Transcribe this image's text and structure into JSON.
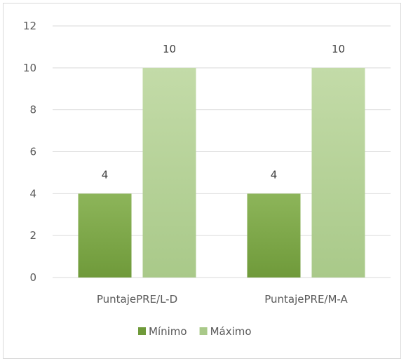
{
  "chart_data": {
    "type": "bar",
    "categories": [
      "PuntajePRE/L-D",
      "PuntajePRE/M-A"
    ],
    "series": [
      {
        "name": "Mínimo",
        "values": [
          4,
          4
        ],
        "color": "#6f9a3a",
        "color_light": "#8db55a"
      },
      {
        "name": "Máximo",
        "values": [
          10,
          10
        ],
        "color": "#a9c989",
        "color_light": "#c3dba8"
      }
    ],
    "ylim": [
      0,
      12
    ],
    "yticks": [
      0,
      2,
      4,
      6,
      8,
      10,
      12
    ],
    "grid": true,
    "legend_position": "bottom",
    "data_labels": true,
    "gridline_color": "#d9d9d9"
  }
}
